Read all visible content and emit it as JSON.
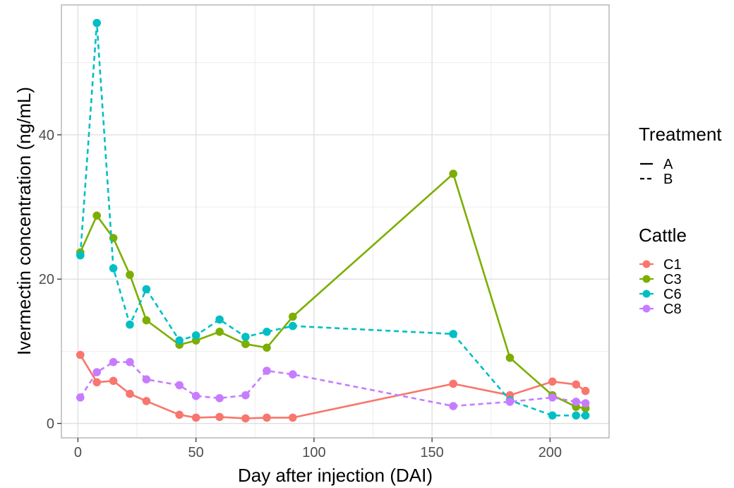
{
  "chart_data": {
    "type": "line",
    "xlabel": "Day after injection (DAI)",
    "ylabel": "Ivermectin concentration (ng/mL)",
    "xlim": [
      -7,
      225
    ],
    "ylim": [
      -2,
      58
    ],
    "xticks": [
      0,
      50,
      100,
      150,
      200
    ],
    "yticks": [
      0,
      20,
      40
    ],
    "grid": true,
    "legends": [
      {
        "title": "Treatment",
        "placement": "right",
        "items": [
          {
            "label": "A",
            "linetype": "solid"
          },
          {
            "label": "B",
            "linetype": "dashed"
          }
        ]
      },
      {
        "title": "Cattle",
        "placement": "right",
        "items": [
          {
            "label": "C1",
            "color": "#F8766D"
          },
          {
            "label": "C3",
            "color": "#7CAE00"
          },
          {
            "label": "C6",
            "color": "#00BFC4"
          },
          {
            "label": "C8",
            "color": "#C77CFF"
          }
        ]
      }
    ],
    "series": [
      {
        "name": "C1",
        "treatment": "A",
        "color": "#F8766D",
        "linetype": "solid",
        "x": [
          1,
          8,
          15,
          22,
          29,
          43,
          50,
          60,
          71,
          80,
          91,
          159,
          183,
          201,
          211,
          215
        ],
        "y": [
          9.5,
          5.7,
          5.9,
          4.1,
          3.1,
          1.2,
          0.8,
          0.9,
          0.7,
          0.8,
          0.8,
          5.5,
          3.9,
          5.8,
          5.4,
          4.5
        ]
      },
      {
        "name": "C3",
        "treatment": "A",
        "color": "#7CAE00",
        "linetype": "solid",
        "x": [
          1,
          8,
          15,
          22,
          29,
          43,
          50,
          60,
          71,
          80,
          91,
          159,
          183,
          201,
          211,
          215
        ],
        "y": [
          23.7,
          28.8,
          25.7,
          20.6,
          14.3,
          10.9,
          11.5,
          12.7,
          11.0,
          10.5,
          14.8,
          34.6,
          9.1,
          3.9,
          2.3,
          2.1
        ]
      },
      {
        "name": "C6",
        "treatment": "B",
        "color": "#00BFC4",
        "linetype": "dashed",
        "x": [
          1,
          8,
          15,
          22,
          29,
          43,
          50,
          60,
          71,
          80,
          91,
          159,
          183,
          201,
          211,
          215
        ],
        "y": [
          23.3,
          55.5,
          21.5,
          13.7,
          18.6,
          11.5,
          12.2,
          14.4,
          12.0,
          12.7,
          13.5,
          12.4,
          3.2,
          1.1,
          1.1,
          1.1
        ]
      },
      {
        "name": "C8",
        "treatment": "B",
        "color": "#C77CFF",
        "linetype": "dashed",
        "x": [
          1,
          8,
          15,
          22,
          29,
          43,
          50,
          60,
          71,
          80,
          91,
          159,
          183,
          201,
          211,
          215
        ],
        "y": [
          3.6,
          7.1,
          8.5,
          8.5,
          6.1,
          5.3,
          3.8,
          3.5,
          3.9,
          7.3,
          6.8,
          2.4,
          3.0,
          3.6,
          3.0,
          2.8
        ]
      }
    ]
  }
}
